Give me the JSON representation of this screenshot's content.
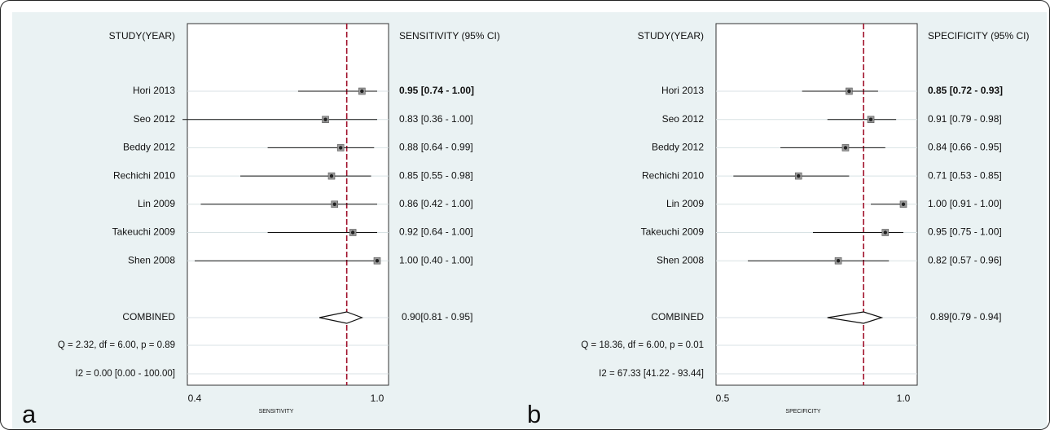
{
  "chart_data": [
    {
      "type": "forest",
      "panel_label": "a",
      "left_header": "STUDY(YEAR)",
      "right_header": "SENSITIVITY (95% CI)",
      "xlabel": "SENSITIVITY",
      "xlim": [
        0.4,
        1.0
      ],
      "x_ticks": [
        "0.4",
        "1.0"
      ],
      "reference_line": 0.9,
      "studies": [
        {
          "label": "Hori 2013",
          "estimate": 0.95,
          "lower": 0.74,
          "upper": 1.0,
          "ci_text": "0.95 [0.74 - 1.00]",
          "bold": true
        },
        {
          "label": "Seo 2012",
          "estimate": 0.83,
          "lower": 0.36,
          "upper": 1.0,
          "ci_text": "0.83 [0.36 - 1.00]",
          "bold": false
        },
        {
          "label": "Beddy  2012",
          "estimate": 0.88,
          "lower": 0.64,
          "upper": 0.99,
          "ci_text": "0.88 [0.64 - 0.99]",
          "bold": false
        },
        {
          "label": "Rechichi 2010",
          "estimate": 0.85,
          "lower": 0.55,
          "upper": 0.98,
          "ci_text": "0.85 [0.55 - 0.98]",
          "bold": false
        },
        {
          "label": "Lin  2009",
          "estimate": 0.86,
          "lower": 0.42,
          "upper": 1.0,
          "ci_text": "0.86 [0.42 - 1.00]",
          "bold": false
        },
        {
          "label": "Takeuchi 2009",
          "estimate": 0.92,
          "lower": 0.64,
          "upper": 1.0,
          "ci_text": "0.92 [0.64 - 1.00]",
          "bold": false
        },
        {
          "label": "Shen 2008",
          "estimate": 1.0,
          "lower": 0.4,
          "upper": 1.0,
          "ci_text": "1.00 [0.40 - 1.00]",
          "bold": false
        }
      ],
      "combined": {
        "label": "COMBINED",
        "estimate": 0.9,
        "lower": 0.81,
        "upper": 0.95,
        "ci_text": "0.90[0.81 - 0.95]"
      },
      "stats": [
        "Q =  2.32, df = 6.00, p =  0.89",
        "I2 = 0.00 [0.00 - 100.00]"
      ]
    },
    {
      "type": "forest",
      "panel_label": "b",
      "left_header": "STUDY(YEAR)",
      "right_header": "SPECIFICITY (95% CI)",
      "xlabel": "SPECIFICITY",
      "xlim": [
        0.5,
        1.0
      ],
      "x_ticks": [
        "0.5",
        "1.0"
      ],
      "reference_line": 0.89,
      "studies": [
        {
          "label": "Hori 2013",
          "estimate": 0.85,
          "lower": 0.72,
          "upper": 0.93,
          "ci_text": "0.85 [0.72 - 0.93]",
          "bold": true
        },
        {
          "label": "Seo 2012",
          "estimate": 0.91,
          "lower": 0.79,
          "upper": 0.98,
          "ci_text": "0.91 [0.79 - 0.98]",
          "bold": false
        },
        {
          "label": "Beddy  2012",
          "estimate": 0.84,
          "lower": 0.66,
          "upper": 0.95,
          "ci_text": "0.84 [0.66 - 0.95]",
          "bold": false
        },
        {
          "label": "Rechichi 2010",
          "estimate": 0.71,
          "lower": 0.53,
          "upper": 0.85,
          "ci_text": "0.71 [0.53 - 0.85]",
          "bold": false
        },
        {
          "label": "Lin  2009",
          "estimate": 1.0,
          "lower": 0.91,
          "upper": 1.0,
          "ci_text": "1.00 [0.91 - 1.00]",
          "bold": false
        },
        {
          "label": "Takeuchi 2009",
          "estimate": 0.95,
          "lower": 0.75,
          "upper": 1.0,
          "ci_text": "0.95 [0.75 - 1.00]",
          "bold": false
        },
        {
          "label": "Shen 2008",
          "estimate": 0.82,
          "lower": 0.57,
          "upper": 0.96,
          "ci_text": "0.82 [0.57 - 0.96]",
          "bold": false
        }
      ],
      "combined": {
        "label": "COMBINED",
        "estimate": 0.89,
        "lower": 0.79,
        "upper": 0.94,
        "ci_text": "0.89[0.79 - 0.94]"
      },
      "stats": [
        "Q = 18.36, df = 6.00, p =  0.01",
        "I2 = 67.33 [41.22 - 93.44]"
      ]
    }
  ],
  "colors": {
    "background": "#eaf2f3",
    "plot_area": "#ffffff",
    "reference_line": "#a0102a",
    "marker": "#222222",
    "marker_box": "#9a9a9a",
    "row_line": "#d8e2e4"
  }
}
